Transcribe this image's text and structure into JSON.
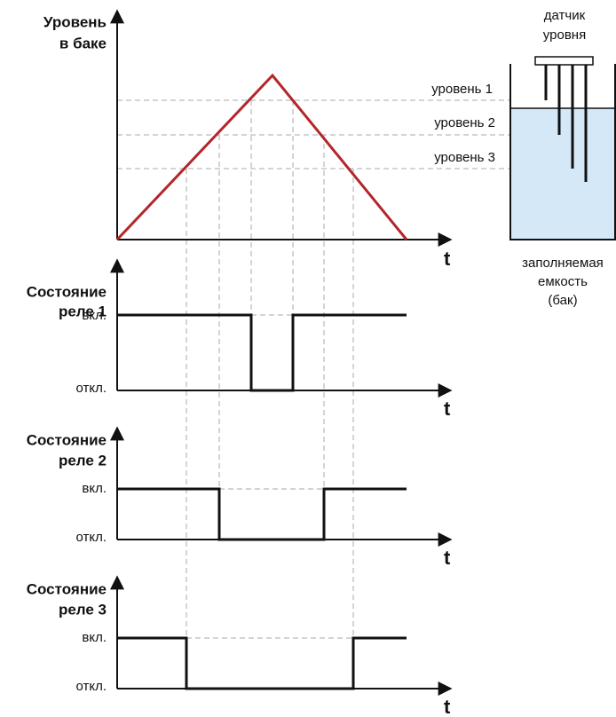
{
  "level_chart": {
    "y_label": [
      "Уровень",
      "в баке"
    ],
    "levels": [
      "уровень 1",
      "уровень 2",
      "уровень 3"
    ],
    "x_label": "t"
  },
  "relays": [
    {
      "label": [
        "Состояние",
        "реле 1"
      ],
      "on": "вкл.",
      "off": "откл.",
      "x_label": "t"
    },
    {
      "label": [
        "Состояние",
        "реле 2"
      ],
      "on": "вкл.",
      "off": "откл.",
      "x_label": "t"
    },
    {
      "label": [
        "Состояние",
        "реле 3"
      ],
      "on": "вкл.",
      "off": "откл.",
      "x_label": "t"
    }
  ],
  "tank": {
    "sensor_label": [
      "датчик",
      "уровня"
    ],
    "tank_label": [
      "заполняемая",
      "емкость",
      "(бак)"
    ]
  }
}
